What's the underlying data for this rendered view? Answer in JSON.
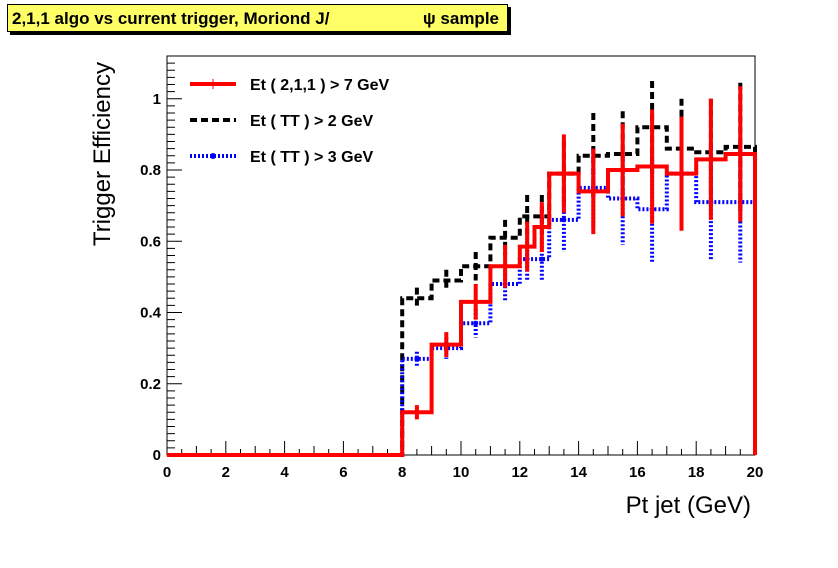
{
  "title_left": "2,1,1 algo vs current trigger, Moriond J/",
  "title_right": "ψ sample",
  "chart_data": {
    "type": "line",
    "style": "step-histogram-with-error-bars",
    "xlabel": "Pt jet (GeV)",
    "ylabel": "Trigger Efficiency",
    "xlim": [
      0,
      20
    ],
    "ylim": [
      0,
      1.12
    ],
    "x_ticks": [
      "0",
      "2",
      "4",
      "6",
      "8",
      "10",
      "12",
      "14",
      "16",
      "18",
      "20"
    ],
    "y_ticks": [
      "0",
      "0.2",
      "0.4",
      "0.6",
      "0.8",
      "1"
    ],
    "legend_position": "top-left",
    "grid": false,
    "bins": [
      [
        0,
        1
      ],
      [
        1,
        2
      ],
      [
        2,
        3
      ],
      [
        3,
        4
      ],
      [
        4,
        5
      ],
      [
        5,
        6
      ],
      [
        6,
        7
      ],
      [
        7,
        8
      ],
      [
        8,
        9
      ],
      [
        9,
        10
      ],
      [
        10,
        11
      ],
      [
        11,
        12
      ],
      [
        12,
        12.5
      ],
      [
        12.5,
        13
      ],
      [
        13,
        14
      ],
      [
        14,
        15
      ],
      [
        15,
        16
      ],
      [
        16,
        17
      ],
      [
        17,
        18
      ],
      [
        18,
        19
      ],
      [
        19,
        20
      ]
    ],
    "series": [
      {
        "name": "Et ( 2,1,1 ) > 7 GeV",
        "color": "#ff0000",
        "style": "solid",
        "values": [
          0,
          0,
          0,
          0,
          0,
          0,
          0,
          0,
          0.12,
          0.31,
          0.43,
          0.53,
          0.585,
          0.64,
          0.79,
          0.74,
          0.8,
          0.81,
          0.79,
          0.83,
          0.845
        ],
        "errors": [
          0,
          0,
          0,
          0,
          0,
          0,
          0,
          0,
          0.02,
          0.035,
          0.05,
          0.06,
          0.07,
          0.07,
          0.11,
          0.12,
          0.13,
          0.16,
          0.16,
          0.17,
          0.19
        ]
      },
      {
        "name": "Et ( TT ) > 2 GeV",
        "color": "#000000",
        "style": "dashed",
        "values": [
          0,
          0,
          0,
          0,
          0,
          0,
          0,
          0,
          0.44,
          0.49,
          0.53,
          0.61,
          0.67,
          0.67,
          0.79,
          0.84,
          0.845,
          0.92,
          0.86,
          0.85,
          0.865
        ],
        "errors": [
          0,
          0,
          0,
          0,
          0,
          0,
          0,
          0,
          0.03,
          0.03,
          0.04,
          0.05,
          0.06,
          0.06,
          0.09,
          0.12,
          0.12,
          0.13,
          0.14,
          0.15,
          0.18
        ]
      },
      {
        "name": "Et ( TT ) > 3 GeV",
        "color": "#0000ff",
        "style": "dotted",
        "values": [
          0,
          0,
          0,
          0,
          0,
          0,
          0,
          0,
          0.27,
          0.3,
          0.37,
          0.48,
          0.55,
          0.55,
          0.66,
          0.75,
          0.72,
          0.69,
          0.79,
          0.71,
          0.71
        ],
        "errors": [
          0,
          0,
          0,
          0,
          0,
          0,
          0,
          0,
          0.02,
          0.03,
          0.04,
          0.05,
          0.06,
          0.06,
          0.09,
          0.11,
          0.13,
          0.15,
          0.16,
          0.16,
          0.17
        ]
      }
    ]
  }
}
